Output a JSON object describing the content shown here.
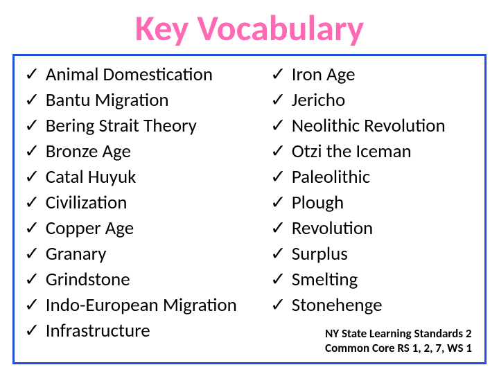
{
  "title": "Key Vocabulary",
  "title_color": "#ff69b4",
  "border_color": "#1e4fd6",
  "background_color": "#ffffff",
  "text_color": "#000000",
  "checkmark": "✓",
  "left_column": [
    "Animal Domestication",
    "Bantu Migration",
    "Bering Strait Theory",
    "Bronze Age",
    "Catal Huyuk",
    "Civilization",
    "Copper Age",
    "Granary",
    "Grindstone",
    "Indo-European Migration",
    "Infrastructure"
  ],
  "right_column": [
    "Iron Age",
    "Jericho",
    "Neolithic Revolution",
    "Otzi the Iceman",
    "Paleolithic",
    "Plough",
    "Revolution",
    "Surplus",
    "Smelting",
    "Stonehenge"
  ],
  "footer_line1": "NY State Learning Standards 2",
  "footer_line2": "Common Core RS 1, 2, 7, WS 1",
  "font_family": "Calibri, Arial, sans-serif",
  "title_fontsize": 52,
  "item_fontsize": 27,
  "footer_fontsize": 17
}
